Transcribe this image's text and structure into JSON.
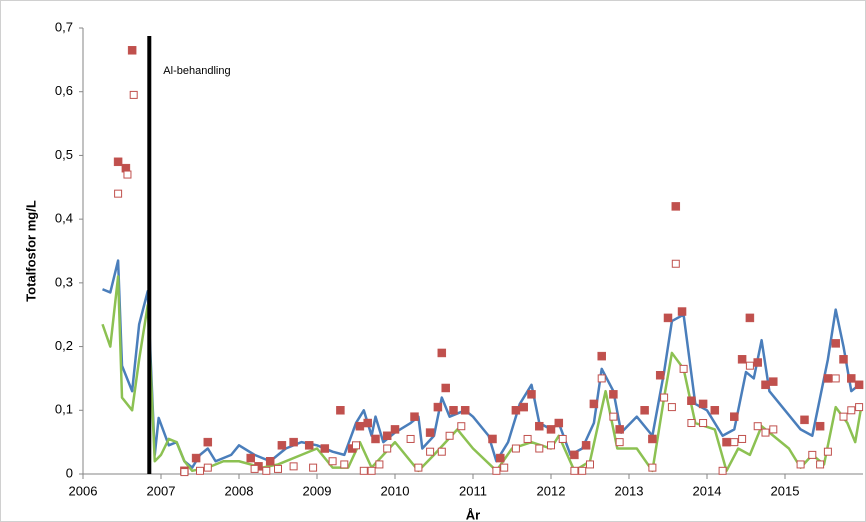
{
  "chart_data": {
    "type": "scatter",
    "ylabel": "Totalfosfor mg/L",
    "xlabel": "År",
    "xlim": [
      2006,
      2016
    ],
    "ylim": [
      0,
      0.7
    ],
    "xticks": [
      2006,
      2007,
      2008,
      2009,
      2010,
      2011,
      2012,
      2013,
      2014,
      2015
    ],
    "yticks": [
      0,
      {
        "value": 0.1,
        "label": "0,1"
      },
      {
        "value": 0.2,
        "label": "0,2"
      },
      {
        "value": 0.3,
        "label": "0,3"
      },
      {
        "value": 0.4,
        "label": "0,4"
      },
      {
        "value": 0.5,
        "label": "0,5"
      },
      {
        "value": 0.6,
        "label": "0,6"
      },
      {
        "value": 0.7,
        "label": "0,7"
      }
    ],
    "annotation": {
      "text": "Al-behandling",
      "x": 2006.85,
      "color": "#000000"
    },
    "series": [
      {
        "type": "line",
        "color": "#4a7ebb",
        "x": [
          2006.25,
          2006.35,
          2006.45,
          2006.5,
          2006.63,
          2006.72,
          2006.83,
          2006.92,
          2006.97,
          2007.1,
          2007.2,
          2007.3,
          2007.4,
          2007.5,
          2007.6,
          2007.7,
          2007.9,
          2008.0,
          2008.2,
          2008.4,
          2008.6,
          2008.8,
          2009.0,
          2009.2,
          2009.35,
          2009.5,
          2009.6,
          2009.7,
          2009.75,
          2009.85,
          2010.0,
          2010.2,
          2010.3,
          2010.35,
          2010.5,
          2010.6,
          2010.7,
          2010.9,
          2011.0,
          2011.2,
          2011.3,
          2011.45,
          2011.6,
          2011.75,
          2011.85,
          2012.0,
          2012.1,
          2012.25,
          2012.4,
          2012.55,
          2012.65,
          2012.8,
          2012.9,
          2013.1,
          2013.3,
          2013.45,
          2013.55,
          2013.7,
          2013.85,
          2014.0,
          2014.2,
          2014.35,
          2014.5,
          2014.6,
          2014.7,
          2014.8,
          2015.0,
          2015.2,
          2015.35,
          2015.55,
          2015.65,
          2015.75,
          2015.85,
          2015.95
        ],
        "values": [
          0.29,
          0.285,
          0.335,
          0.17,
          0.13,
          0.235,
          0.287,
          0.03,
          0.088,
          0.045,
          0.05,
          0.02,
          0.01,
          0.03,
          0.04,
          0.02,
          0.03,
          0.045,
          0.03,
          0.02,
          0.04,
          0.05,
          0.045,
          0.035,
          0.03,
          0.08,
          0.1,
          0.06,
          0.09,
          0.05,
          0.065,
          0.08,
          0.09,
          0.04,
          0.06,
          0.12,
          0.09,
          0.1,
          0.09,
          0.06,
          0.02,
          0.05,
          0.11,
          0.14,
          0.08,
          0.07,
          0.08,
          0.03,
          0.04,
          0.08,
          0.165,
          0.13,
          0.065,
          0.09,
          0.06,
          0.16,
          0.24,
          0.25,
          0.11,
          0.1,
          0.06,
          0.07,
          0.16,
          0.15,
          0.21,
          0.13,
          0.1,
          0.07,
          0.06,
          0.18,
          0.258,
          0.2,
          0.13,
          0.14
        ]
      },
      {
        "type": "line",
        "color": "#8cc152",
        "x": [
          2006.25,
          2006.35,
          2006.45,
          2006.5,
          2006.63,
          2006.72,
          2006.83,
          2006.92,
          2007.0,
          2007.1,
          2007.2,
          2007.3,
          2007.4,
          2007.6,
          2007.8,
          2008.0,
          2008.3,
          2008.5,
          2008.8,
          2009.0,
          2009.2,
          2009.4,
          2009.55,
          2009.7,
          2009.85,
          2010.0,
          2010.3,
          2010.5,
          2010.8,
          2011.0,
          2011.3,
          2011.5,
          2011.75,
          2012.0,
          2012.1,
          2012.3,
          2012.5,
          2012.7,
          2012.85,
          2013.1,
          2013.3,
          2013.45,
          2013.55,
          2013.7,
          2013.85,
          2014.1,
          2014.25,
          2014.4,
          2014.55,
          2014.7,
          2014.85,
          2015.05,
          2015.2,
          2015.35,
          2015.5,
          2015.65,
          2015.8,
          2015.9,
          2015.97
        ],
        "values": [
          0.235,
          0.2,
          0.31,
          0.12,
          0.1,
          0.18,
          0.265,
          0.02,
          0.03,
          0.055,
          0.05,
          0.02,
          0.005,
          0.01,
          0.02,
          0.02,
          0.01,
          0.015,
          0.03,
          0.04,
          0.01,
          0.01,
          0.05,
          0.01,
          0.03,
          0.05,
          0.005,
          0.03,
          0.07,
          0.04,
          0.005,
          0.04,
          0.05,
          0.04,
          0.06,
          0.005,
          0.02,
          0.13,
          0.04,
          0.04,
          0.005,
          0.12,
          0.19,
          0.165,
          0.08,
          0.07,
          0.005,
          0.04,
          0.03,
          0.075,
          0.06,
          0.04,
          0.01,
          0.03,
          0.015,
          0.105,
          0.08,
          0.05,
          0.1
        ]
      },
      {
        "type": "scatter",
        "marker": "filled",
        "color": "#c0504d",
        "x": [
          2006.45,
          2006.55,
          2006.63,
          2007.3,
          2007.45,
          2007.6,
          2008.15,
          2008.25,
          2008.4,
          2008.55,
          2008.7,
          2008.9,
          2009.1,
          2009.3,
          2009.45,
          2009.55,
          2009.65,
          2009.75,
          2009.9,
          2010.0,
          2010.25,
          2010.45,
          2010.55,
          2010.6,
          2010.65,
          2010.75,
          2010.9,
          2011.25,
          2011.35,
          2011.55,
          2011.65,
          2011.75,
          2011.85,
          2012.0,
          2012.1,
          2012.3,
          2012.45,
          2012.55,
          2012.65,
          2012.8,
          2012.88,
          2013.2,
          2013.3,
          2013.4,
          2013.5,
          2013.6,
          2013.68,
          2013.8,
          2013.95,
          2014.1,
          2014.25,
          2014.35,
          2014.45,
          2014.55,
          2014.65,
          2014.75,
          2014.85,
          2015.25,
          2015.45,
          2015.55,
          2015.65,
          2015.75,
          2015.85,
          2015.95
        ],
        "values": [
          0.49,
          0.48,
          0.665,
          0.005,
          0.025,
          0.05,
          0.025,
          0.012,
          0.02,
          0.045,
          0.05,
          0.045,
          0.04,
          0.1,
          0.04,
          0.075,
          0.08,
          0.055,
          0.06,
          0.07,
          0.09,
          0.065,
          0.105,
          0.19,
          0.135,
          0.1,
          0.1,
          0.055,
          0.025,
          0.1,
          0.105,
          0.125,
          0.075,
          0.07,
          0.08,
          0.03,
          0.045,
          0.11,
          0.185,
          0.125,
          0.07,
          0.1,
          0.055,
          0.155,
          0.245,
          0.42,
          0.255,
          0.115,
          0.11,
          0.1,
          0.05,
          0.09,
          0.18,
          0.245,
          0.175,
          0.14,
          0.145,
          0.085,
          0.075,
          0.15,
          0.205,
          0.18,
          0.15,
          0.14
        ]
      },
      {
        "type": "scatter",
        "marker": "open",
        "color": "#c0504d",
        "x": [
          2006.45,
          2006.57,
          2006.65,
          2007.3,
          2007.5,
          2007.6,
          2008.2,
          2008.35,
          2008.5,
          2008.7,
          2008.95,
          2009.2,
          2009.35,
          2009.5,
          2009.6,
          2009.7,
          2009.8,
          2009.9,
          2010.2,
          2010.3,
          2010.45,
          2010.6,
          2010.7,
          2010.85,
          2011.3,
          2011.4,
          2011.55,
          2011.7,
          2011.85,
          2012.0,
          2012.15,
          2012.3,
          2012.4,
          2012.5,
          2012.65,
          2012.8,
          2012.88,
          2013.3,
          2013.45,
          2013.55,
          2013.6,
          2013.7,
          2013.8,
          2013.95,
          2014.2,
          2014.35,
          2014.45,
          2014.55,
          2014.65,
          2014.75,
          2014.85,
          2015.2,
          2015.35,
          2015.45,
          2015.55,
          2015.65,
          2015.75,
          2015.85,
          2015.95
        ],
        "values": [
          0.44,
          0.47,
          0.595,
          0.003,
          0.005,
          0.01,
          0.008,
          0.005,
          0.008,
          0.012,
          0.01,
          0.02,
          0.015,
          0.045,
          0.005,
          0.005,
          0.015,
          0.04,
          0.055,
          0.01,
          0.035,
          0.035,
          0.06,
          0.075,
          0.005,
          0.01,
          0.04,
          0.055,
          0.04,
          0.045,
          0.055,
          0.005,
          0.005,
          0.015,
          0.15,
          0.09,
          0.05,
          0.01,
          0.12,
          0.105,
          0.33,
          0.165,
          0.08,
          0.08,
          0.005,
          0.05,
          0.055,
          0.17,
          0.075,
          0.065,
          0.07,
          0.015,
          0.03,
          0.015,
          0.035,
          0.15,
          0.09,
          0.1,
          0.105
        ]
      }
    ]
  }
}
